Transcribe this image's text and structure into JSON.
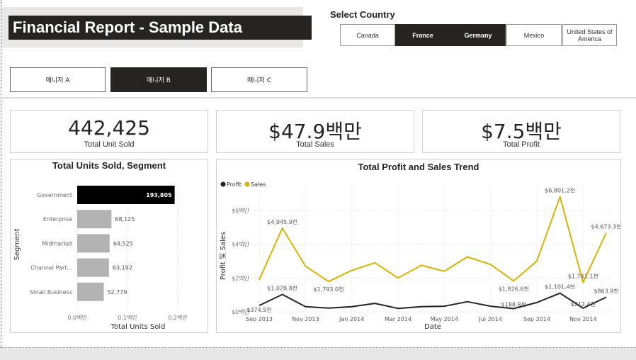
{
  "title": "Financial Report - Sample Data",
  "country_filter": {
    "label": "Select Country",
    "options": [
      "Canada",
      "France",
      "Germany",
      "Mexico",
      "United States of America"
    ],
    "selected": [
      "France",
      "Germany"
    ]
  },
  "manager_filter": {
    "options": [
      "매니저 A",
      "매니저 B",
      "매니저 C"
    ],
    "selected": "매니저 B"
  },
  "kpis": [
    {
      "value": "442,425",
      "label": "Total Unit Sold"
    },
    {
      "value": "$47.9백만",
      "label": "Total Sales"
    },
    {
      "value": "$7.5백만",
      "label": "Total Profit"
    }
  ],
  "colors": {
    "dark": "#252423",
    "gray_bar": "#b3b3b3",
    "sales": "#d9b300",
    "profit": "#252423"
  },
  "chart_data": [
    {
      "type": "bar",
      "orientation": "horizontal",
      "title": "Total Units Sold, Segment",
      "xlabel": "Total Units Sold",
      "ylabel": "Segment",
      "categories": [
        "Government",
        "Enterprise",
        "Midmarket",
        "Channel Part...",
        "Small Business"
      ],
      "values": [
        193805,
        68125,
        64525,
        63192,
        52779
      ],
      "value_labels": [
        "193,805",
        "68,125",
        "64,525",
        "63,192",
        "52,779"
      ],
      "highlight_index": 0,
      "xlim": [
        0,
        200000
      ],
      "x_ticks": [
        0,
        100000,
        200000
      ],
      "x_tick_labels": [
        "0.0백만",
        "0.1백만",
        "0.2백만"
      ],
      "grid": true
    },
    {
      "type": "line",
      "title": "Total Profit and Sales Trend",
      "xlabel": "Date",
      "ylabel": "Profit 및 Sales",
      "legend": {
        "position": "top-left",
        "entries": [
          "Profit",
          "Sales"
        ]
      },
      "x": [
        "2013-09",
        "2013-10",
        "2013-11",
        "2013-12",
        "2014-01",
        "2014-02",
        "2014-03",
        "2014-04",
        "2014-05",
        "2014-06",
        "2014-07",
        "2014-08",
        "2014-09",
        "2014-10",
        "2014-11",
        "2014-12"
      ],
      "x_ticks": [
        "Sep 2013",
        "Nov 2013",
        "Jan 2014",
        "Mar 2014",
        "May 2014",
        "Jul 2014",
        "Sep 2014",
        "Nov 2014"
      ],
      "ylim": [
        0,
        7000000
      ],
      "y_ticks": [
        0,
        2000000,
        4000000,
        6000000
      ],
      "y_tick_labels": [
        "$0백만",
        "$2백만",
        "$4백만",
        "$6백만"
      ],
      "grid": true,
      "series": [
        {
          "name": "Sales",
          "values": [
            1900000,
            4945900,
            2700000,
            1793000,
            2450000,
            2900000,
            2000000,
            2750000,
            2400000,
            3250000,
            2800000,
            1826600,
            3000000,
            6801200,
            1741100,
            4673300
          ]
        },
        {
          "name": "Profit",
          "values": [
            374500,
            1028800,
            300000,
            220000,
            300000,
            500000,
            200000,
            300000,
            330000,
            600000,
            330000,
            188800,
            550000,
            1101400,
            212400,
            863900
          ]
        }
      ],
      "annotations": [
        {
          "series": "Sales",
          "index": 1,
          "text": "$4,945.9천"
        },
        {
          "series": "Sales",
          "index": 3,
          "text": "$1,793.0천"
        },
        {
          "series": "Sales",
          "index": 11,
          "text": "$1,826.6천"
        },
        {
          "series": "Sales",
          "index": 13,
          "text": "$6,801.2천"
        },
        {
          "series": "Sales",
          "index": 14,
          "text": "$1,741.1천"
        },
        {
          "series": "Sales",
          "index": 15,
          "text": "$4,673.3천"
        },
        {
          "series": "Profit",
          "index": 0,
          "text": "$374.5천"
        },
        {
          "series": "Profit",
          "index": 1,
          "text": "$1,028.8천"
        },
        {
          "series": "Profit",
          "index": 11,
          "text": "$188.8천"
        },
        {
          "series": "Profit",
          "index": 13,
          "text": "$1,101.4천"
        },
        {
          "series": "Profit",
          "index": 14,
          "text": "$212.4천"
        },
        {
          "series": "Profit",
          "index": 15,
          "text": "$863.9천"
        }
      ]
    }
  ]
}
